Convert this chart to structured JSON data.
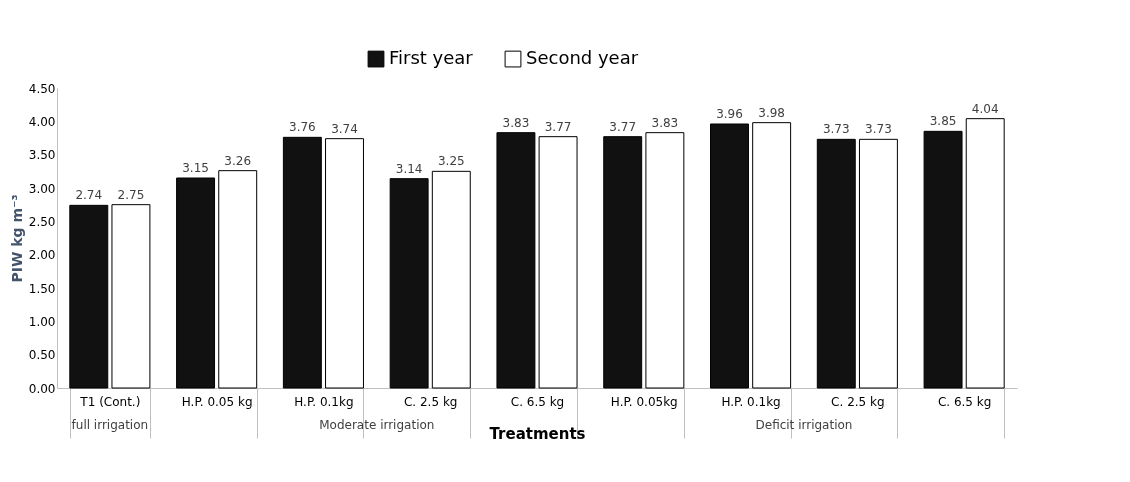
{
  "chart_data": {
    "type": "bar",
    "xlabel": "Treatments",
    "ylabel": "PIW kg m⁻³",
    "categories": [
      "T1 (Cont.)",
      "H.P. 0.05 kg",
      "H.P. 0.1kg",
      "C. 2.5 kg",
      "C. 6.5 kg",
      "H.P. 0.05kg",
      "H.P. 0.1kg",
      "C. 2.5 kg",
      "C. 6.5 kg"
    ],
    "series": [
      {
        "name": "First year",
        "color": "#111111",
        "values": [
          2.74,
          3.15,
          3.76,
          3.14,
          3.83,
          3.77,
          3.96,
          3.73,
          3.85
        ]
      },
      {
        "name": "Second year",
        "color": "#ffffff",
        "values": [
          2.75,
          3.26,
          3.74,
          3.25,
          3.77,
          3.83,
          3.98,
          3.73,
          4.04
        ]
      }
    ],
    "ylim": [
      0,
      4.5
    ],
    "yticks": [
      {
        "value": 0,
        "label": "0.00"
      },
      {
        "value": 0.5,
        "label": "0.50"
      },
      {
        "value": 1,
        "label": "1.00"
      },
      {
        "value": 1.5,
        "label": "1.50"
      },
      {
        "value": 2,
        "label": "2.00"
      },
      {
        "value": 2.5,
        "label": "2.50"
      },
      {
        "value": 3,
        "label": "3.00"
      },
      {
        "value": 3.5,
        "label": "3.50"
      },
      {
        "value": 4,
        "label": "4.00"
      },
      {
        "value": 4.5,
        "label": "4.50"
      }
    ],
    "annotations": [
      "full irrigation",
      "Moderate irrigation",
      "Deficit irrigation"
    ],
    "data_labels": true,
    "grid": false,
    "legend": "top"
  }
}
